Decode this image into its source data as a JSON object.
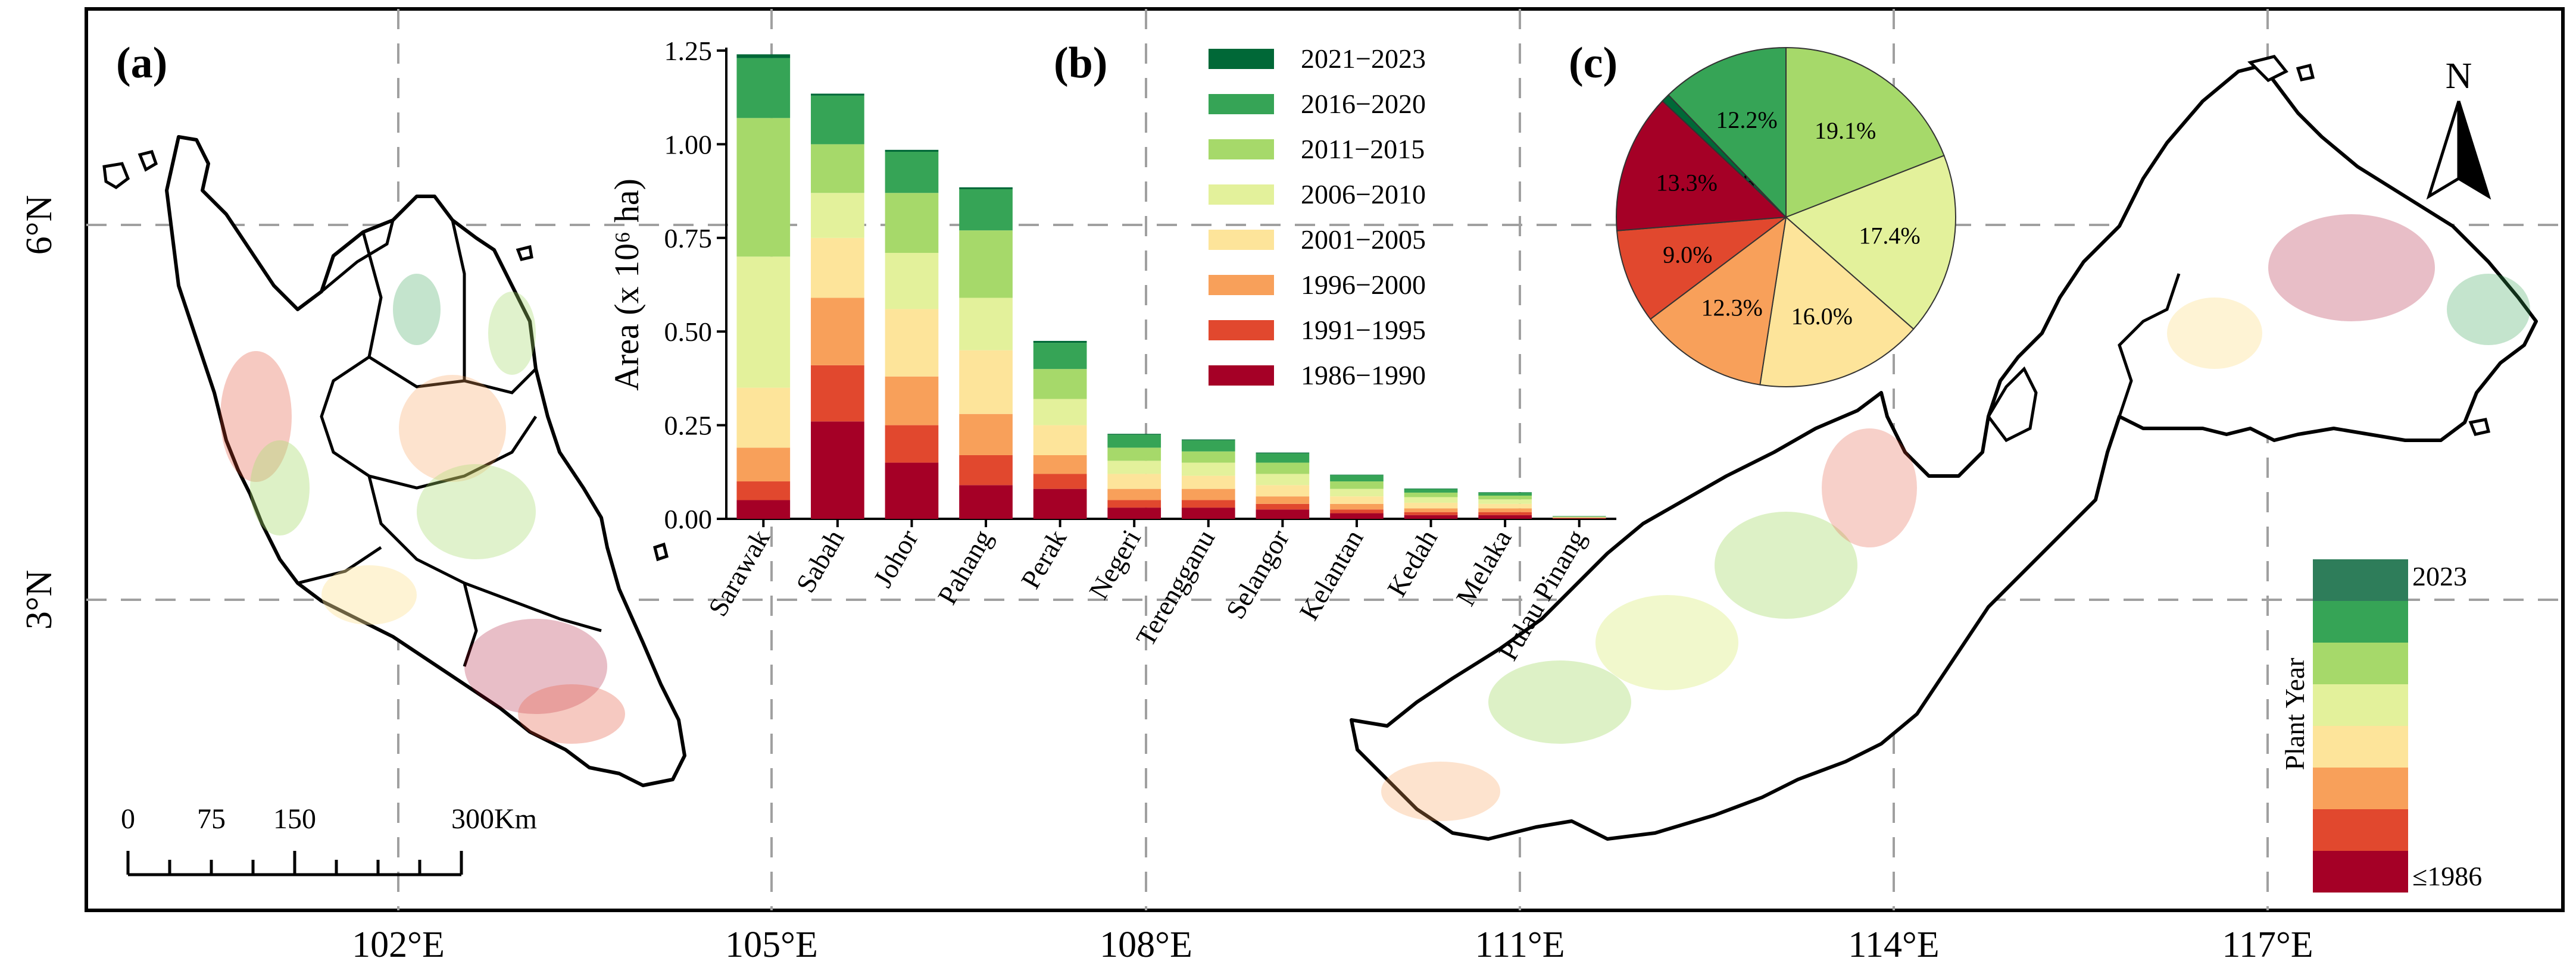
{
  "panels": {
    "a": "(a)",
    "b": "(b)",
    "c": "(c)"
  },
  "map": {
    "lat_labels": [
      "6°N",
      "3°N"
    ],
    "lon_labels": [
      "102°E",
      "105°E",
      "108°E",
      "111°E",
      "114°E",
      "117°E"
    ],
    "north_label": "N",
    "scale_labels": [
      "0",
      "75",
      "150",
      "300Km"
    ],
    "colorbar": {
      "title": "Plant Year",
      "top_label": "2023",
      "bottom_label": "≤1986",
      "colors": [
        "#2e7d5a",
        "#36a456",
        "#a6d96a",
        "#e3f19b",
        "#fde49a",
        "#f8a05a",
        "#e1482e",
        "#a50026"
      ]
    },
    "colors": {
      "land_outline": "#000000",
      "grid": "#9a9a9a"
    }
  },
  "chart_data": [
    {
      "type": "bar",
      "stacked": true,
      "ylabel": "Area (x 10⁶ ha)",
      "ylim": [
        0,
        1.25
      ],
      "yticks": [
        "0.00",
        "0.25",
        "0.50",
        "0.75",
        "1.00",
        "1.25"
      ],
      "categories": [
        "Sarawak",
        "Sabah",
        "Johor",
        "Pahang",
        "Perak",
        "Negeri",
        "Terengganu",
        "Selangor",
        "Kelantan",
        "Kedah",
        "Melaka",
        "Pulau Pinang"
      ],
      "series": [
        {
          "name": "1986−1990",
          "color": "#a50026",
          "values": [
            0.05,
            0.26,
            0.15,
            0.09,
            0.08,
            0.03,
            0.03,
            0.025,
            0.015,
            0.01,
            0.01,
            0.001
          ]
        },
        {
          "name": "1991−1995",
          "color": "#e1482e",
          "values": [
            0.05,
            0.15,
            0.1,
            0.08,
            0.04,
            0.02,
            0.02,
            0.015,
            0.01,
            0.008,
            0.008,
            0.001
          ]
        },
        {
          "name": "1996−2000",
          "color": "#f8a05a",
          "values": [
            0.09,
            0.18,
            0.13,
            0.11,
            0.05,
            0.03,
            0.03,
            0.02,
            0.015,
            0.01,
            0.01,
            0.001
          ]
        },
        {
          "name": "2001−2005",
          "color": "#fde49a",
          "values": [
            0.16,
            0.16,
            0.18,
            0.17,
            0.08,
            0.04,
            0.035,
            0.03,
            0.02,
            0.015,
            0.012,
            0.001
          ]
        },
        {
          "name": "2006−2010",
          "color": "#e3f19b",
          "values": [
            0.35,
            0.12,
            0.15,
            0.14,
            0.07,
            0.035,
            0.035,
            0.03,
            0.02,
            0.015,
            0.012,
            0.001
          ]
        },
        {
          "name": "2011−2015",
          "color": "#a6d96a",
          "values": [
            0.37,
            0.13,
            0.16,
            0.18,
            0.08,
            0.035,
            0.03,
            0.03,
            0.02,
            0.012,
            0.01,
            0.001
          ]
        },
        {
          "name": "2016−2020",
          "color": "#36a456",
          "values": [
            0.16,
            0.13,
            0.11,
            0.11,
            0.07,
            0.035,
            0.03,
            0.025,
            0.017,
            0.01,
            0.008,
            0.001
          ]
        },
        {
          "name": "2021−2023",
          "color": "#006837",
          "values": [
            0.01,
            0.005,
            0.005,
            0.005,
            0.005,
            0.002,
            0.002,
            0.002,
            0.001,
            0.001,
            0.001,
            0.0005
          ]
        }
      ],
      "legend": "top-right"
    },
    {
      "type": "pie",
      "labels": [
        "2021−2023",
        "2016−2020",
        "2011−2015",
        "2006−2010",
        "2001−2005",
        "1996−2000",
        "1991−1995",
        "1986−1990"
      ],
      "values": [
        0.8,
        12.2,
        19.1,
        17.4,
        16.0,
        12.3,
        9.0,
        13.3
      ],
      "value_labels": [
        "0.8%",
        "12.2%",
        "19.1%",
        "17.4%",
        "16.0%",
        "12.3%",
        "9.0%",
        "13.3%"
      ],
      "colors": [
        "#006837",
        "#36a456",
        "#a6d96a",
        "#e3f19b",
        "#fde49a",
        "#f8a05a",
        "#e1482e",
        "#a50026"
      ]
    }
  ]
}
